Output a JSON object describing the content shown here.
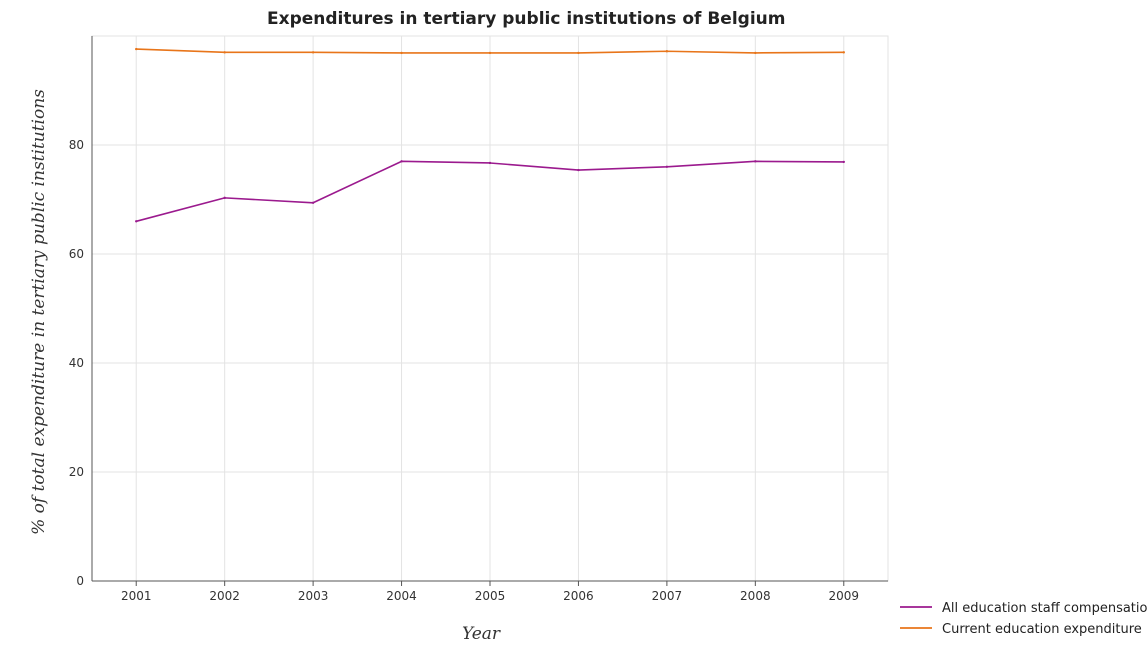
{
  "chart_data": {
    "type": "line",
    "title": "Expenditures in tertiary public institutions of Belgium",
    "xlabel": "Year",
    "ylabel": "% of total expenditure in tertiary public institutions",
    "categories": [
      "2001",
      "2002",
      "2003",
      "2004",
      "2005",
      "2006",
      "2007",
      "2008",
      "2009"
    ],
    "ylim": [
      0,
      100
    ],
    "yticks": [
      0,
      20,
      40,
      60,
      80
    ],
    "grid": true,
    "legend_position": "bottom-right",
    "series": [
      {
        "name": "All education staff compensation",
        "color": "#9b1a8e",
        "values": [
          66.0,
          70.3,
          69.4,
          77.0,
          76.7,
          75.4,
          76.0,
          77.0,
          76.9
        ]
      },
      {
        "name": "Current education expenditure",
        "color": "#e8751a",
        "values": [
          97.6,
          97.0,
          97.0,
          96.9,
          96.9,
          96.9,
          97.2,
          96.9,
          97.0
        ]
      }
    ]
  }
}
